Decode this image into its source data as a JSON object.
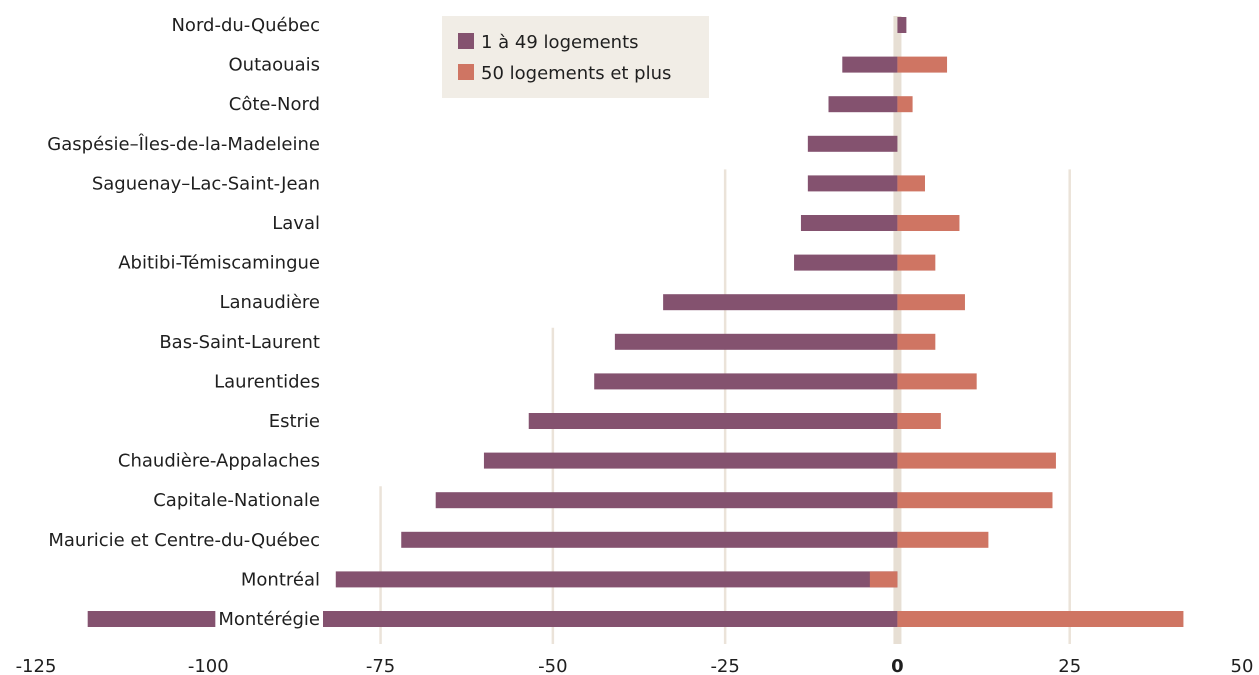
{
  "chart_data": {
    "type": "bar",
    "orientation": "horizontal",
    "stacking": "overlaid",
    "categories": [
      "Nord-du-Québec",
      "Outaouais",
      "Côte-Nord",
      "Gaspésie–Îles-de-la-Madeleine",
      "Saguenay–Lac-Saint-Jean",
      "Laval",
      "Abitibi-Témiscamingue",
      "Lanaudière",
      "Bas-Saint-Laurent",
      "Laurentides",
      "Estrie",
      "Chaudière-Appalaches",
      "Capitale-Nationale",
      "Mauricie et Centre-du-Québec",
      "Montréal",
      "Montérégie"
    ],
    "series": [
      {
        "name": "1 à 49 logements",
        "color": "#84526f",
        "values": [
          1.3,
          -8,
          -10,
          -13,
          -13,
          -14,
          -15,
          -34,
          -41,
          -44,
          -53.5,
          -60,
          -67,
          -72,
          -81.5,
          -117.5
        ]
      },
      {
        "name": "50 logements et plus",
        "color": "#cf7563",
        "values": [
          0,
          7.2,
          2.2,
          0,
          4,
          9,
          5.5,
          9.8,
          5.5,
          11.5,
          6.3,
          23,
          22.5,
          13.2,
          -4,
          41.5
        ]
      }
    ],
    "xlim": [
      -125,
      50
    ],
    "xticks": [
      "-125",
      "-100",
      "-75",
      "-50",
      "-25",
      "0",
      "25",
      "50"
    ],
    "gridlines": [
      -75,
      -50,
      -25,
      25
    ],
    "zero_line_color": "#e7dfd4",
    "grid_color": "#ebe3d9",
    "legend": {
      "position": "top-center",
      "background": "#f1ede6",
      "entries": [
        "1 à 49 logements",
        "50 logements et plus"
      ]
    },
    "title": "",
    "xlabel": "",
    "ylabel": ""
  }
}
